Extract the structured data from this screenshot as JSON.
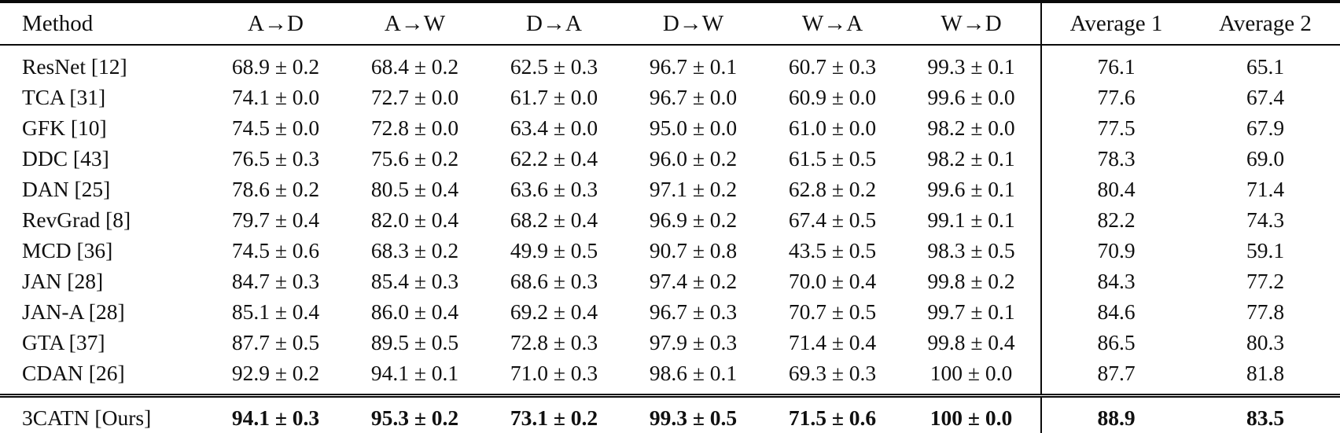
{
  "table": {
    "columns": [
      "Method",
      "A→D",
      "A→W",
      "D→A",
      "D→W",
      "W→A",
      "W→D",
      "Average 1",
      "Average 2"
    ],
    "rows": [
      {
        "method": "ResNet [12]",
        "bold": false,
        "values": [
          "68.9 ± 0.2",
          "68.4 ± 0.2",
          "62.5 ± 0.3",
          "96.7 ± 0.1",
          "60.7 ± 0.3",
          "99.3 ± 0.1",
          "76.1",
          "65.1"
        ]
      },
      {
        "method": "TCA [31]",
        "bold": false,
        "values": [
          "74.1 ± 0.0",
          "72.7 ± 0.0",
          "61.7 ± 0.0",
          "96.7 ± 0.0",
          "60.9 ± 0.0",
          "99.6 ± 0.0",
          "77.6",
          "67.4"
        ]
      },
      {
        "method": "GFK [10]",
        "bold": false,
        "values": [
          "74.5 ± 0.0",
          "72.8 ± 0.0",
          "63.4 ± 0.0",
          "95.0 ± 0.0",
          "61.0 ± 0.0",
          "98.2 ± 0.0",
          "77.5",
          "67.9"
        ]
      },
      {
        "method": "DDC [43]",
        "bold": false,
        "values": [
          "76.5 ± 0.3",
          "75.6 ± 0.2",
          "62.2 ± 0.4",
          "96.0 ± 0.2",
          "61.5 ± 0.5",
          "98.2 ± 0.1",
          "78.3",
          "69.0"
        ]
      },
      {
        "method": "DAN [25]",
        "bold": false,
        "values": [
          "78.6 ± 0.2",
          "80.5 ± 0.4",
          "63.6 ± 0.3",
          "97.1 ± 0.2",
          "62.8 ± 0.2",
          "99.6 ± 0.1",
          "80.4",
          "71.4"
        ]
      },
      {
        "method": "RevGrad [8]",
        "bold": false,
        "values": [
          "79.7 ± 0.4",
          "82.0 ± 0.4",
          "68.2 ± 0.4",
          "96.9 ± 0.2",
          "67.4 ± 0.5",
          "99.1 ± 0.1",
          "82.2",
          "74.3"
        ]
      },
      {
        "method": "MCD [36]",
        "bold": false,
        "values": [
          "74.5 ± 0.6",
          "68.3 ± 0.2",
          "49.9 ± 0.5",
          "90.7 ± 0.8",
          "43.5 ± 0.5",
          "98.3 ± 0.5",
          "70.9",
          "59.1"
        ]
      },
      {
        "method": "JAN [28]",
        "bold": false,
        "values": [
          "84.7 ± 0.3",
          "85.4 ± 0.3",
          "68.6 ± 0.3",
          "97.4 ± 0.2",
          "70.0 ± 0.4",
          "99.8 ± 0.2",
          "84.3",
          "77.2"
        ]
      },
      {
        "method": "JAN-A [28]",
        "bold": false,
        "values": [
          "85.1 ± 0.4",
          "86.0 ± 0.4",
          "69.2 ± 0.4",
          "96.7 ± 0.3",
          "70.7 ± 0.5",
          "99.7 ± 0.1",
          "84.6",
          "77.8"
        ]
      },
      {
        "method": "GTA [37]",
        "bold": false,
        "values": [
          "87.7 ± 0.5",
          "89.5 ± 0.5",
          "72.8 ± 0.3",
          "97.9 ± 0.3",
          "71.4 ± 0.4",
          "99.8 ± 0.4",
          "86.5",
          "80.3"
        ]
      },
      {
        "method": "CDAN [26]",
        "bold": false,
        "values": [
          "92.9 ± 0.2",
          "94.1 ± 0.1",
          "71.0 ± 0.3",
          "98.6 ± 0.1",
          "69.3 ± 0.3",
          "100 ± 0.0",
          "87.7",
          "81.8"
        ]
      },
      {
        "method": "3CATN [Ours]",
        "bold": true,
        "values": [
          "94.1 ± 0.3",
          "95.3 ± 0.2",
          "73.1 ± 0.2",
          "99.3 ± 0.5",
          "71.5 ± 0.6",
          "100 ± 0.0",
          "88.9",
          "83.5"
        ]
      }
    ]
  }
}
